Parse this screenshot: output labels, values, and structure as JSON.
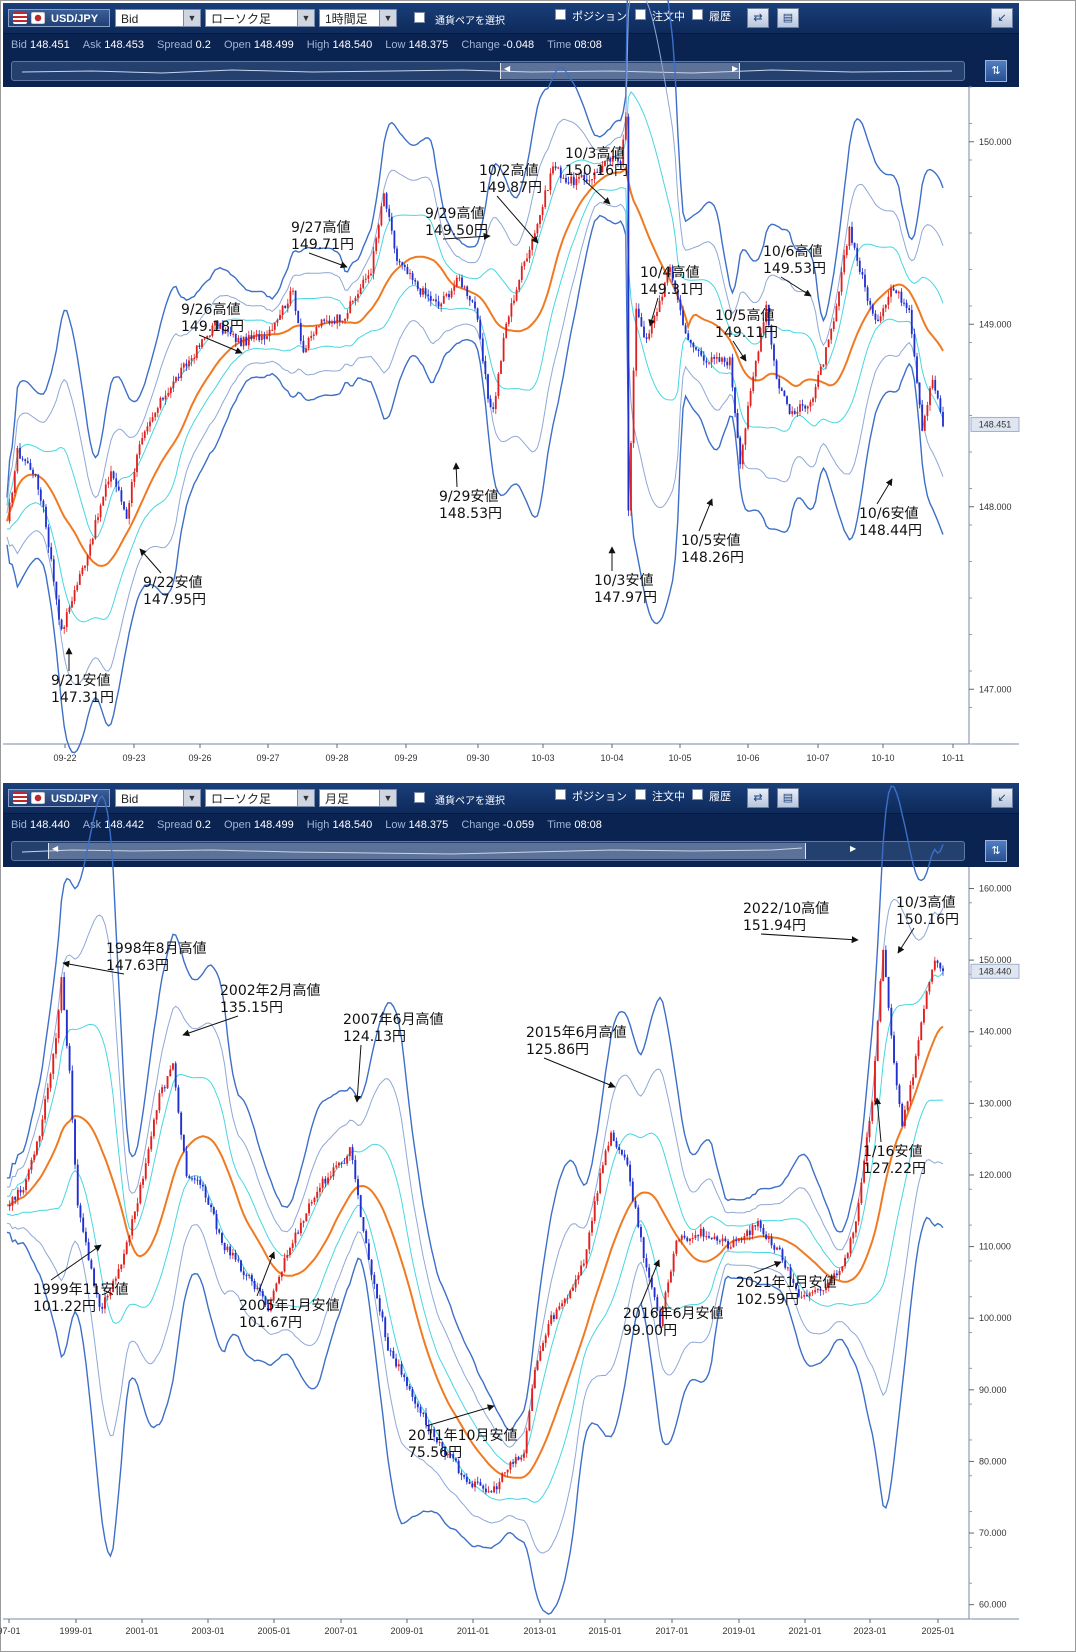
{
  "panels": [
    {
      "toolbar": {
        "pair": "USD/JPY",
        "price_type": "Bid",
        "chart_type": "ローソク足",
        "timeframe": "1時間足",
        "pair_select_label": "通貨ペアを選択",
        "position_label": "ポジション",
        "orders_label": "注文中",
        "history_label": "履歴"
      },
      "info": {
        "bid_label": "Bid",
        "bid": "148.451",
        "ask_label": "Ask",
        "ask": "148.453",
        "spread_label": "Spread",
        "spread": "0.2",
        "open_label": "Open",
        "open": "148.499",
        "high_label": "High",
        "high": "148.540",
        "low_label": "Low",
        "low": "148.375",
        "change_label": "Change",
        "change": "-0.048",
        "time_label": "Time",
        "time": "08:08"
      },
      "current_price_label": "148.451"
    },
    {
      "toolbar": {
        "pair": "USD/JPY",
        "price_type": "Bid",
        "chart_type": "ローソク足",
        "timeframe": "月足",
        "pair_select_label": "通貨ペアを選択",
        "position_label": "ポジション",
        "orders_label": "注文中",
        "history_label": "履歴"
      },
      "info": {
        "bid_label": "Bid",
        "bid": "148.440",
        "ask_label": "Ask",
        "ask": "148.442",
        "spread_label": "Spread",
        "spread": "0.2",
        "open_label": "Open",
        "open": "148.499",
        "high_label": "High",
        "high": "148.540",
        "low_label": "Low",
        "low": "148.375",
        "change_label": "Change",
        "change": "-0.059",
        "time_label": "Time",
        "time": "08:08"
      },
      "current_price_label": "148.440"
    }
  ],
  "colors": {
    "toolbar_bg": "#0e2a5a",
    "candle_up": "#e0201e",
    "candle_down": "#1f2fd0",
    "ma": "#ef7a22",
    "band_inner": "#48d6e0",
    "band_mid": "#8fa8d8",
    "band_outer": "#3d6fc8"
  },
  "chart_data": [
    {
      "type": "candlestick",
      "timeframe": "1時間足",
      "x_tick_labels": [
        "09-22",
        "09-23",
        "09-26",
        "09-27",
        "09-28",
        "09-29",
        "09-30",
        "10-03",
        "10-04",
        "10-05",
        "10-06",
        "10-07",
        "10-10",
        "10-11"
      ],
      "y_tick_labels": [
        "150.000",
        "149.000",
        "148.000",
        "147.000"
      ],
      "ylim": [
        146.7,
        150.3
      ],
      "path": [
        [
          0,
          147.9
        ],
        [
          4,
          148.3
        ],
        [
          10,
          148.2
        ],
        [
          14,
          148.0
        ],
        [
          18,
          147.6
        ],
        [
          21,
          147.31
        ],
        [
          25,
          147.5
        ],
        [
          30,
          147.7
        ],
        [
          40,
          148.2
        ],
        [
          46,
          147.95
        ],
        [
          50,
          148.3
        ],
        [
          60,
          148.6
        ],
        [
          70,
          148.8
        ],
        [
          80,
          149.0
        ],
        [
          90,
          148.9
        ],
        [
          100,
          148.95
        ],
        [
          110,
          149.18
        ],
        [
          114,
          148.85
        ],
        [
          120,
          149.0
        ],
        [
          130,
          149.05
        ],
        [
          140,
          149.3
        ],
        [
          145,
          149.71
        ],
        [
          150,
          149.35
        ],
        [
          158,
          149.2
        ],
        [
          166,
          149.1
        ],
        [
          174,
          149.25
        ],
        [
          180,
          149.1
        ],
        [
          185,
          148.6
        ],
        [
          187,
          148.53
        ],
        [
          192,
          149.0
        ],
        [
          198,
          149.3
        ],
        [
          205,
          149.6
        ],
        [
          210,
          149.87
        ],
        [
          216,
          149.78
        ],
        [
          224,
          149.8
        ],
        [
          232,
          149.9
        ],
        [
          236,
          149.9
        ],
        [
          238,
          150.16
        ],
        [
          239,
          147.97
        ],
        [
          242,
          149.1
        ],
        [
          246,
          148.9
        ],
        [
          255,
          149.31
        ],
        [
          262,
          148.9
        ],
        [
          270,
          148.8
        ],
        [
          278,
          148.8
        ],
        [
          282,
          148.26
        ],
        [
          288,
          148.8
        ],
        [
          292,
          149.11
        ],
        [
          296,
          148.7
        ],
        [
          302,
          148.5
        ],
        [
          310,
          148.6
        ],
        [
          318,
          149.0
        ],
        [
          324,
          149.53
        ],
        [
          328,
          149.3
        ],
        [
          334,
          149.0
        ],
        [
          340,
          149.2
        ],
        [
          347,
          149.1
        ],
        [
          352,
          148.44
        ],
        [
          356,
          148.7
        ],
        [
          360,
          148.451
        ]
      ],
      "annotations": [
        {
          "date": "9/21安値",
          "price": "147.31円"
        },
        {
          "date": "9/22安値",
          "price": "147.95円"
        },
        {
          "date": "9/26高値",
          "price": "149.18円"
        },
        {
          "date": "9/27高値",
          "price": "149.71円"
        },
        {
          "date": "9/29高値",
          "price": "149.50円"
        },
        {
          "date": "9/29安値",
          "price": "148.53円"
        },
        {
          "date": "10/2高値",
          "price": "149.87円"
        },
        {
          "date": "10/3高値",
          "price": "150.16円"
        },
        {
          "date": "10/3安値",
          "price": "147.97円"
        },
        {
          "date": "10/4高値",
          "price": "149.31円"
        },
        {
          "date": "10/5高値",
          "price": "149.11円"
        },
        {
          "date": "10/5安値",
          "price": "148.26円"
        },
        {
          "date": "10/6高値",
          "price": "149.53円"
        },
        {
          "date": "10/6安値",
          "price": "148.44円"
        }
      ]
    },
    {
      "type": "candlestick",
      "timeframe": "月足",
      "x_tick_labels": [
        "97-01",
        "1999-01",
        "2001-01",
        "2003-01",
        "2005-01",
        "2007-01",
        "2009-01",
        "2011-01",
        "2013-01",
        "2015-01",
        "2017-01",
        "2019-01",
        "2021-01",
        "2023-01",
        "2025-01"
      ],
      "y_tick_labels": [
        "160.000",
        "150.000",
        "140.000",
        "130.000",
        "120.000",
        "110.000",
        "100.000",
        "90.000",
        "80.000",
        "70.000",
        "60.000"
      ],
      "ylim": [
        58,
        163
      ],
      "path": [
        [
          0,
          116
        ],
        [
          6,
          118
        ],
        [
          12,
          126
        ],
        [
          18,
          139
        ],
        [
          20,
          147.63
        ],
        [
          23,
          134
        ],
        [
          26,
          116
        ],
        [
          30,
          108
        ],
        [
          34,
          101.22
        ],
        [
          38,
          104
        ],
        [
          44,
          110
        ],
        [
          50,
          120
        ],
        [
          56,
          131
        ],
        [
          61,
          135.15
        ],
        [
          66,
          120
        ],
        [
          72,
          118
        ],
        [
          80,
          110
        ],
        [
          88,
          106
        ],
        [
          96,
          101.67
        ],
        [
          102,
          108
        ],
        [
          110,
          115
        ],
        [
          116,
          119
        ],
        [
          124,
          122
        ],
        [
          126,
          124.13
        ],
        [
          132,
          110
        ],
        [
          140,
          96
        ],
        [
          148,
          90
        ],
        [
          156,
          84
        ],
        [
          164,
          80
        ],
        [
          170,
          77
        ],
        [
          178,
          75.56
        ],
        [
          184,
          79
        ],
        [
          190,
          81
        ],
        [
          194,
          93
        ],
        [
          200,
          100
        ],
        [
          206,
          103
        ],
        [
          212,
          108
        ],
        [
          218,
          120
        ],
        [
          222,
          125.86
        ],
        [
          228,
          121
        ],
        [
          234,
          109
        ],
        [
          240,
          99.0
        ],
        [
          246,
          111
        ],
        [
          256,
          112
        ],
        [
          266,
          110
        ],
        [
          276,
          113
        ],
        [
          284,
          109
        ],
        [
          292,
          102.59
        ],
        [
          300,
          104
        ],
        [
          308,
          108
        ],
        [
          312,
          114
        ],
        [
          318,
          130
        ],
        [
          322,
          151.94
        ],
        [
          326,
          136
        ],
        [
          329,
          127.22
        ],
        [
          334,
          136
        ],
        [
          338,
          146
        ],
        [
          341,
          150.16
        ],
        [
          343,
          148.44
        ]
      ],
      "annotations": [
        {
          "date": "1998年8月高値",
          "price": "147.63円"
        },
        {
          "date": "1999年11安値",
          "price": "101.22円"
        },
        {
          "date": "2002年2月高値",
          "price": "135.15円"
        },
        {
          "date": "2005年1月安値",
          "price": "101.67円"
        },
        {
          "date": "2007年6月高値",
          "price": "124.13円"
        },
        {
          "date": "2011年10月安値",
          "price": "75.56円"
        },
        {
          "date": "2015年6月高値",
          "price": "125.86円"
        },
        {
          "date": "2016年6月安値",
          "price": "99.00円"
        },
        {
          "date": "2021年1月安値",
          "price": "102.59円"
        },
        {
          "date": "2022/10高値",
          "price": "151.94円"
        },
        {
          "date": "1/16安値",
          "price": "127.22円"
        },
        {
          "date": "10/3高値",
          "price": "150.16円"
        }
      ]
    }
  ]
}
